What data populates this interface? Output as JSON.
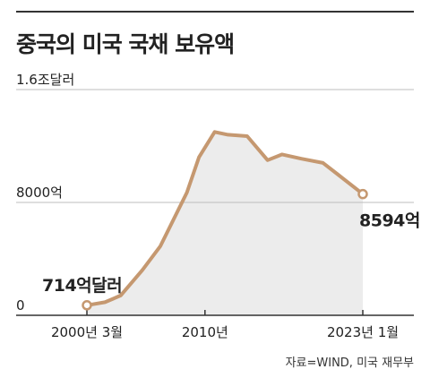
{
  "title": "중국의 미국 국채 보유액",
  "source": "자료=WIND, 미국 재무부",
  "colors": {
    "line": "#c59870",
    "area": "#ececec",
    "grid": "#bdbdbd",
    "axis": "#333333"
  },
  "chart_data": {
    "type": "area",
    "title": "중국의 미국 국채 보유액",
    "ylim": [
      0,
      16000
    ],
    "y_ticks": [
      {
        "value": 0,
        "label": "0"
      },
      {
        "value": 8000,
        "label": "8000억"
      },
      {
        "value": 16000,
        "label": "1.6조달러"
      }
    ],
    "xlim": [
      2000.2,
      2023.1
    ],
    "x_ticks": [
      {
        "value": 2000.2,
        "label": "2000년 3월"
      },
      {
        "value": 2010.0,
        "label": "2010년"
      },
      {
        "value": 2023.1,
        "label": "2023년 1월"
      }
    ],
    "series": [
      {
        "x": [
          2000.2,
          2001.7,
          2003.0,
          2004.8,
          2006.3,
          2008.5,
          2009.5,
          2010.8,
          2011.9,
          2013.5,
          2015.2,
          2016.4,
          2018.0,
          2019.8,
          2021.0,
          2023.1
        ],
        "values": [
          714,
          930,
          1400,
          3200,
          4900,
          8700,
          11200,
          13000,
          12800,
          12700,
          11000,
          11400,
          11100,
          10800,
          10000,
          8594
        ]
      }
    ],
    "annotations": [
      {
        "point": "start",
        "label": "714억달러"
      },
      {
        "point": "end",
        "label": "8594억"
      }
    ]
  }
}
